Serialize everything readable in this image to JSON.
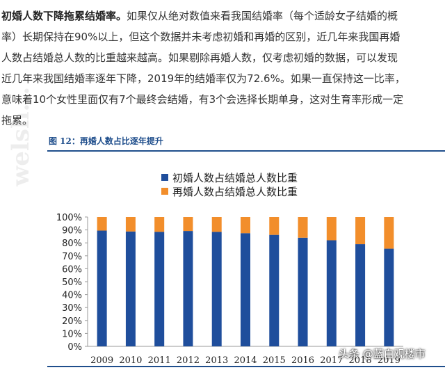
{
  "article": {
    "bold_lead": "初婚人数下降拖累结婚率。",
    "lines": [
      "如果仅从绝对数值来看我国结婚率（每个适龄女子结婚的概",
      "率）长期保持在90%以上，但这个数据并未考虑初婚和再婚的区别，近几年来我国再婚",
      "人数占结婚总人数的比重越来越高。如果剔除再婚人数，仅考虑初婚的数据，可以发现",
      "近几年来我国结婚率逐年下降，2019年的结婚率仅为72.6%。如果一直保持这一比率，",
      "意味着10个女性里面仅有7个最终会结婚，有3个会选择长期单身，这对生育率形成一定",
      "拖累。"
    ]
  },
  "figure": {
    "title": "图 12：再婚人数占比逐年提升"
  },
  "watermark": "welsh...",
  "credit": "头条 @蓝白观楼市",
  "colors": {
    "first_marriage": "#1f4e9c",
    "remarriage": "#f28e2b",
    "axis": "#999999",
    "title": "#1f4e8c"
  },
  "chart_data": {
    "type": "bar",
    "stacked": true,
    "categories": [
      "2009",
      "2010",
      "2011",
      "2012",
      "2013",
      "2014",
      "2015",
      "2016",
      "2017",
      "2018",
      "2019"
    ],
    "series": [
      {
        "name": "初婚人数占结婚总人数比重",
        "values": [
          89.5,
          88.8,
          88.5,
          89.2,
          88.5,
          87.5,
          86.2,
          84.0,
          82.0,
          79.0,
          75.5
        ]
      },
      {
        "name": "再婚人数占结婚总人数比重",
        "values": [
          10.5,
          11.2,
          11.5,
          10.8,
          11.5,
          12.5,
          13.8,
          16.0,
          18.0,
          21.0,
          24.5
        ]
      }
    ],
    "y_ticks": [
      "100%",
      "90%",
      "80%",
      "70%",
      "60%",
      "50%",
      "40%",
      "30%",
      "20%",
      "10%",
      "0%"
    ],
    "ylim": [
      0,
      100
    ],
    "legend": "top-center",
    "grid": false
  }
}
